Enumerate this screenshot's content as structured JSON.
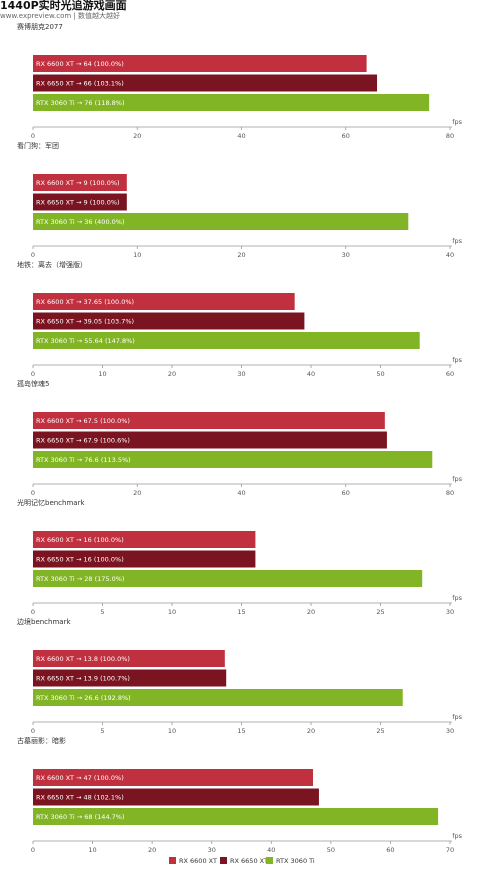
{
  "header": {
    "title": "1440P实时光追游戏画面",
    "subtitle": "www.expreview.com | 数值越大越好"
  },
  "colors": {
    "rx6600xt": "#c0303e",
    "rx6650xt": "#7a1420",
    "rtx3060ti": "#82b526"
  },
  "legend": [
    "RX 6600 XT",
    "RX 6650 XT",
    "RTX 3060 Ti"
  ],
  "unit": "fps",
  "chart_data": [
    {
      "type": "bar",
      "orientation": "horizontal",
      "title": "赛博朋克2077",
      "categories": [
        "RX 6600 XT",
        "RX 6650 XT",
        "RTX 3060 Ti"
      ],
      "values": [
        64,
        66,
        76
      ],
      "labels": [
        "RX 6600 XT → 64 (100.0%)",
        "RX 6650 XT → 66 (103.1%)",
        "RTX 3060 Ti → 76 (118.8%)"
      ],
      "xlim": [
        0,
        80
      ],
      "ticks": [
        0,
        20,
        40,
        60,
        80
      ],
      "xlabel": "fps"
    },
    {
      "type": "bar",
      "orientation": "horizontal",
      "title": "看门狗：军团",
      "categories": [
        "RX 6600 XT",
        "RX 6650 XT",
        "RTX 3060 Ti"
      ],
      "values": [
        9,
        9,
        36
      ],
      "labels": [
        "RX 6600 XT → 9 (100.0%)",
        "RX 6650 XT → 9 (100.0%)",
        "RTX 3060 Ti → 36 (400.0%)"
      ],
      "xlim": [
        0,
        40
      ],
      "ticks": [
        0,
        10,
        20,
        30,
        40
      ],
      "xlabel": "fps"
    },
    {
      "type": "bar",
      "orientation": "horizontal",
      "title": "地铁：离去（增强版）",
      "categories": [
        "RX 6600 XT",
        "RX 6650 XT",
        "RTX 3060 Ti"
      ],
      "values": [
        37.65,
        39.05,
        55.64
      ],
      "labels": [
        "RX 6600 XT → 37.65 (100.0%)",
        "RX 6650 XT → 39.05 (103.7%)",
        "RTX 3060 Ti → 55.64 (147.8%)"
      ],
      "xlim": [
        0,
        60
      ],
      "ticks": [
        0,
        10,
        20,
        30,
        40,
        50,
        60
      ],
      "xlabel": "fps"
    },
    {
      "type": "bar",
      "orientation": "horizontal",
      "title": "孤岛惊魂5",
      "categories": [
        "RX 6600 XT",
        "RX 6650 XT",
        "RTX 3060 Ti"
      ],
      "values": [
        67.5,
        67.9,
        76.6
      ],
      "labels": [
        "RX 6600 XT → 67.5 (100.0%)",
        "RX 6650 XT → 67.9 (100.6%)",
        "RTX 3060 Ti → 76.6 (113.5%)"
      ],
      "xlim": [
        0,
        80
      ],
      "ticks": [
        0,
        20,
        40,
        60,
        80
      ],
      "xlabel": "fps"
    },
    {
      "type": "bar",
      "orientation": "horizontal",
      "title": "光明记忆benchmark",
      "categories": [
        "RX 6600 XT",
        "RX 6650 XT",
        "RTX 3060 Ti"
      ],
      "values": [
        16,
        16,
        28
      ],
      "labels": [
        "RX 6600 XT → 16 (100.0%)",
        "RX 6650 XT → 16 (100.0%)",
        "RTX 3060 Ti → 28 (175.0%)"
      ],
      "xlim": [
        0,
        30
      ],
      "ticks": [
        0,
        5,
        10,
        15,
        20,
        25,
        30
      ],
      "xlabel": "fps"
    },
    {
      "type": "bar",
      "orientation": "horizontal",
      "title": "边境benchmark",
      "categories": [
        "RX 6600 XT",
        "RX 6650 XT",
        "RTX 3060 Ti"
      ],
      "values": [
        13.8,
        13.9,
        26.6
      ],
      "labels": [
        "RX 6600 XT → 13.8 (100.0%)",
        "RX 6650 XT → 13.9 (100.7%)",
        "RTX 3060 Ti → 26.6 (192.8%)"
      ],
      "xlim": [
        0,
        30
      ],
      "ticks": [
        0,
        5,
        10,
        15,
        20,
        25,
        30
      ],
      "xlabel": "fps"
    },
    {
      "type": "bar",
      "orientation": "horizontal",
      "title": "古墓丽影：暗影",
      "categories": [
        "RX 6600 XT",
        "RX 6650 XT",
        "RTX 3060 Ti"
      ],
      "values": [
        47,
        48,
        68
      ],
      "labels": [
        "RX 6600 XT → 47 (100.0%)",
        "RX 6650 XT → 48 (102.1%)",
        "RTX 3060 Ti → 68 (144.7%)"
      ],
      "xlim": [
        0,
        70
      ],
      "ticks": [
        0,
        10,
        20,
        30,
        40,
        50,
        60,
        70
      ],
      "xlabel": "fps"
    }
  ]
}
